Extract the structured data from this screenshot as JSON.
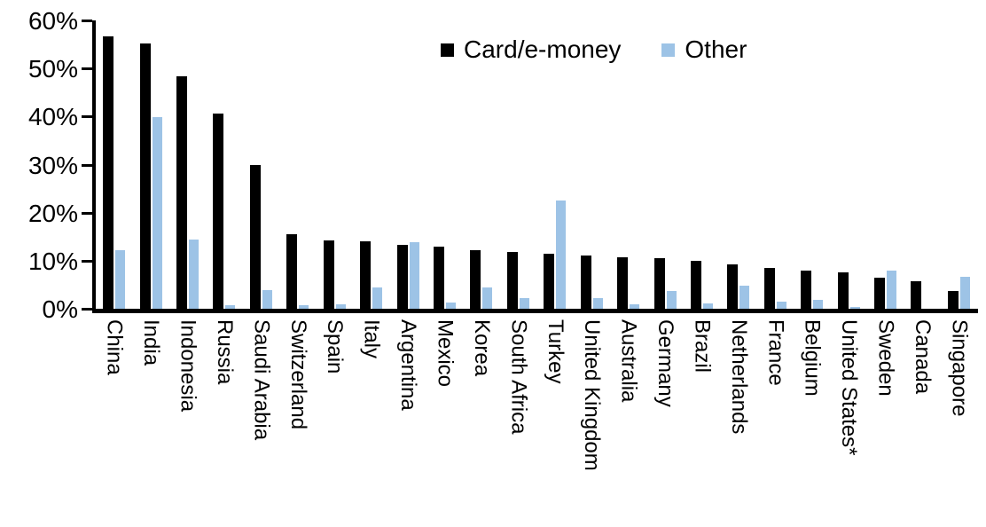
{
  "chart_data": {
    "type": "bar",
    "title": "",
    "categories": [
      "China",
      "India",
      "Indonesia",
      "Russia",
      "Saudi Arabia",
      "Switzerland",
      "Spain",
      "Italy",
      "Argentina",
      "Mexico",
      "Korea",
      "South Africa",
      "Turkey",
      "United Kingdom",
      "Australia",
      "Germany",
      "Brazil",
      "Netherlands",
      "France",
      "Belgium",
      "United States*",
      "Sweden",
      "Canada",
      "Singapore"
    ],
    "series": [
      {
        "name": "Card/e-money",
        "color": "#000000",
        "values": [
          56.7,
          55.3,
          48.4,
          40.7,
          29.9,
          15.6,
          14.2,
          14.0,
          13.3,
          12.9,
          12.2,
          11.8,
          11.5,
          11.0,
          10.7,
          10.6,
          9.9,
          9.2,
          8.5,
          8.0,
          7.6,
          6.4,
          5.8,
          3.7
        ]
      },
      {
        "name": "Other",
        "color": "#9DC3E6",
        "values": [
          12.2,
          39.8,
          14.4,
          0.8,
          3.9,
          0.7,
          0.9,
          4.4,
          13.8,
          1.3,
          4.4,
          2.2,
          22.6,
          2.2,
          0.9,
          3.7,
          1.1,
          4.9,
          1.5,
          1.8,
          0.3,
          7.9,
          0.0,
          6.6
        ]
      }
    ],
    "y_axis": {
      "min": 0,
      "max": 60,
      "tick_step": 10,
      "tick_labels": [
        "0%",
        "10%",
        "20%",
        "30%",
        "40%",
        "50%",
        "60%"
      ]
    },
    "x_axis": {
      "label_rotation": "vertical-top-down"
    },
    "grid": false,
    "legend": {
      "position": "top-center"
    }
  }
}
